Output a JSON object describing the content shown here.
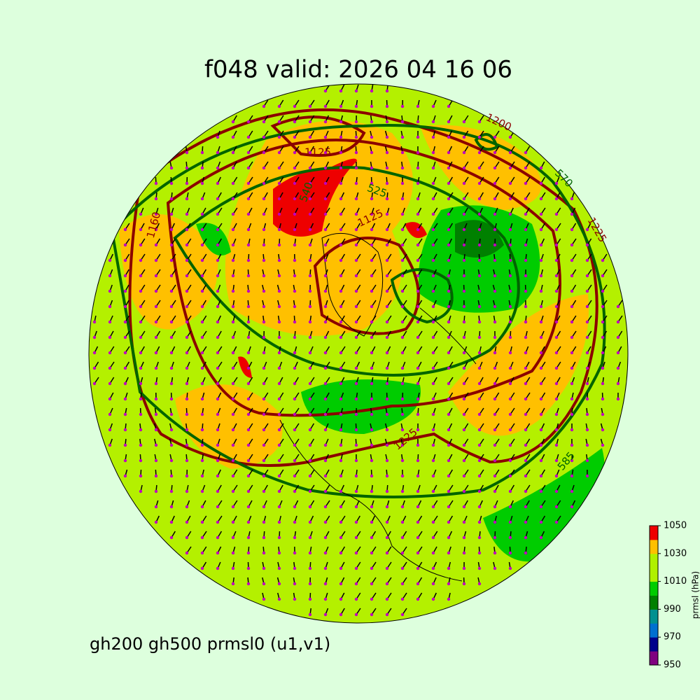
{
  "header": {
    "title": "f048 valid:   2026 04 16 06"
  },
  "caption": "gh200 gh500 prmsl0 (u1,v1)",
  "colorbar": {
    "label": "prmsl (hPa)",
    "ticks": [
      950,
      970,
      990,
      1010,
      1030,
      1050
    ],
    "colors": [
      "#800080",
      "#00008b",
      "#0070d0",
      "#009090",
      "#008000",
      "#00cc00",
      "#b0f000",
      "#b0f000",
      "#ffc000",
      "#ee0000"
    ]
  },
  "contour_labels": [
    "1200",
    "1225",
    "1125",
    "540",
    "525",
    "570",
    "585",
    "1160",
    "1125",
    "1225"
  ]
}
